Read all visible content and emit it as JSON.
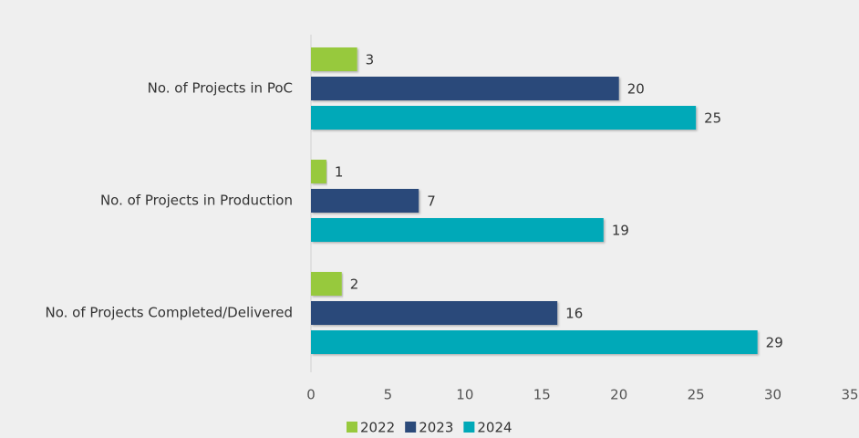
{
  "chart_data": {
    "type": "hbar",
    "categories": [
      "No. of Projects in PoC",
      "No. of Projects in Production",
      "No. of Projects Completed/Delivered"
    ],
    "series": [
      {
        "name": "2022",
        "color": "#97c93d",
        "values": [
          3,
          1,
          2
        ]
      },
      {
        "name": "2023",
        "color": "#2b4a7a",
        "values": [
          20,
          7,
          16
        ]
      },
      {
        "name": "2024",
        "color": "#00a9b8",
        "values": [
          25,
          19,
          29
        ]
      }
    ],
    "xlim": [
      0,
      35
    ],
    "xticks": [
      0,
      5,
      10,
      15,
      20,
      25,
      30,
      35
    ],
    "legend": "bottom"
  }
}
